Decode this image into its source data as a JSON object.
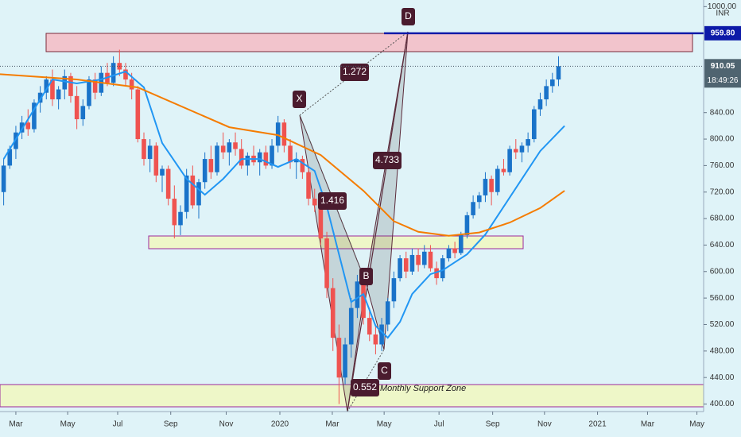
{
  "chart_data": {
    "type": "candlestick",
    "currency": "INR",
    "up_color": "#1a73c9",
    "down_color": "#ef5350",
    "xlim": [
      -2.6,
      112.8
    ],
    "ylim": [
      388,
      1010
    ],
    "grid": false,
    "xticks": [
      {
        "value": 0,
        "label": "Mar"
      },
      {
        "value": 8.5,
        "label": "May"
      },
      {
        "value": 16.7,
        "label": "Jul"
      },
      {
        "value": 25.4,
        "label": "Sep"
      },
      {
        "value": 34.5,
        "label": "Nov"
      },
      {
        "value": 43.3,
        "label": "2020"
      },
      {
        "value": 51.9,
        "label": "Mar"
      },
      {
        "value": 60.4,
        "label": "May"
      },
      {
        "value": 69.4,
        "label": "Jul"
      },
      {
        "value": 78.2,
        "label": "Sep"
      },
      {
        "value": 86.7,
        "label": "Nov"
      },
      {
        "value": 95.4,
        "label": "2021"
      },
      {
        "value": 103.6,
        "label": "Mar"
      },
      {
        "value": 111.7,
        "label": "May"
      }
    ],
    "yticks": [
      {
        "value": 400,
        "label": "400.00"
      },
      {
        "value": 440,
        "label": "440.00"
      },
      {
        "value": 480,
        "label": "480.00"
      },
      {
        "value": 520,
        "label": "520.00"
      },
      {
        "value": 560,
        "label": "560.00"
      },
      {
        "value": 600,
        "label": "600.00"
      },
      {
        "value": 640,
        "label": "640.00"
      },
      {
        "value": 680,
        "label": "680.00"
      },
      {
        "value": 720,
        "label": "720.00"
      },
      {
        "value": 760,
        "label": "760.00"
      },
      {
        "value": 800,
        "label": "800.00"
      },
      {
        "value": 840,
        "label": "840.00"
      },
      {
        "value": 1000,
        "label": "1000.00"
      }
    ],
    "x": [
      -2,
      -1,
      0,
      1,
      2,
      3,
      4,
      5,
      6,
      7,
      8,
      9,
      10,
      11,
      12,
      13,
      14,
      15,
      16,
      17,
      18,
      19,
      20,
      21,
      22,
      23,
      24,
      25,
      26,
      27,
      28,
      29,
      30,
      31,
      32,
      33,
      34,
      35,
      36,
      37,
      38,
      39,
      40,
      41,
      42,
      43,
      44,
      45,
      46,
      47,
      48,
      49,
      50,
      51,
      52,
      53,
      54,
      55,
      56,
      57,
      58,
      59,
      60,
      61,
      62,
      63,
      64,
      65,
      66,
      67,
      68,
      69,
      70,
      71,
      72,
      73,
      74,
      75,
      76,
      77,
      78,
      79,
      80,
      81,
      82,
      83,
      84,
      85,
      86,
      87,
      88,
      89
    ],
    "open": [
      720,
      760,
      785,
      810,
      825,
      815,
      855,
      870,
      890,
      860,
      875,
      895,
      865,
      830,
      850,
      890,
      870,
      900,
      885,
      915,
      905,
      890,
      875,
      800,
      770,
      790,
      745,
      755,
      710,
      670,
      690,
      745,
      700,
      735,
      770,
      750,
      790,
      780,
      795,
      785,
      760,
      775,
      765,
      780,
      760,
      790,
      825,
      790,
      765,
      770,
      750,
      710,
      700,
      650,
      575,
      500,
      440,
      490,
      545,
      585,
      530,
      505,
      490,
      520,
      555,
      590,
      620,
      600,
      625,
      610,
      630,
      605,
      590,
      620,
      635,
      628,
      655,
      685,
      705,
      715,
      740,
      720,
      755,
      750,
      785,
      780,
      790,
      800,
      845,
      860,
      880,
      890
    ],
    "high": [
      770,
      790,
      820,
      835,
      845,
      860,
      880,
      895,
      905,
      880,
      905,
      900,
      880,
      860,
      895,
      900,
      910,
      915,
      925,
      935,
      915,
      900,
      880,
      810,
      800,
      795,
      760,
      760,
      730,
      700,
      755,
      760,
      740,
      780,
      790,
      795,
      810,
      800,
      810,
      800,
      780,
      790,
      785,
      790,
      800,
      835,
      830,
      800,
      780,
      775,
      760,
      725,
      705,
      660,
      590,
      520,
      500,
      560,
      595,
      590,
      545,
      520,
      530,
      560,
      600,
      625,
      630,
      635,
      635,
      640,
      640,
      615,
      625,
      640,
      645,
      660,
      690,
      715,
      720,
      750,
      745,
      760,
      770,
      790,
      800,
      795,
      810,
      850,
      870,
      890,
      900,
      925
    ],
    "low": [
      700,
      755,
      770,
      800,
      805,
      810,
      840,
      860,
      850,
      845,
      860,
      855,
      815,
      820,
      845,
      860,
      865,
      880,
      880,
      895,
      880,
      860,
      795,
      760,
      750,
      735,
      720,
      700,
      650,
      655,
      680,
      695,
      680,
      725,
      740,
      745,
      770,
      760,
      775,
      755,
      745,
      760,
      745,
      755,
      755,
      780,
      780,
      755,
      740,
      740,
      700,
      690,
      640,
      560,
      480,
      400,
      430,
      470,
      530,
      520,
      495,
      475,
      480,
      510,
      545,
      585,
      590,
      595,
      600,
      605,
      600,
      580,
      585,
      615,
      620,
      625,
      650,
      680,
      695,
      705,
      700,
      715,
      745,
      745,
      770,
      765,
      780,
      795,
      835,
      850,
      870,
      880
    ],
    "close": [
      760,
      785,
      810,
      825,
      815,
      855,
      870,
      890,
      860,
      875,
      895,
      865,
      830,
      850,
      890,
      870,
      900,
      885,
      915,
      905,
      890,
      875,
      800,
      770,
      790,
      745,
      755,
      710,
      670,
      690,
      745,
      700,
      735,
      770,
      750,
      790,
      780,
      795,
      785,
      760,
      775,
      765,
      780,
      760,
      790,
      825,
      790,
      765,
      770,
      750,
      710,
      700,
      650,
      575,
      500,
      440,
      490,
      545,
      585,
      530,
      505,
      490,
      520,
      555,
      590,
      620,
      600,
      625,
      610,
      630,
      605,
      590,
      620,
      635,
      628,
      655,
      685,
      705,
      715,
      740,
      720,
      755,
      750,
      785,
      780,
      790,
      800,
      845,
      860,
      880,
      890,
      910.05
    ],
    "lines": [
      {
        "color": "#2196f3",
        "x": [
          -2,
          2,
          6,
          10,
          14,
          18,
          21,
          24,
          28,
          31,
          34,
          37,
          40,
          43,
          46,
          49,
          51,
          53,
          55,
          57,
          59,
          61,
          63,
          65,
          68,
          70,
          72,
          74,
          77,
          80,
          83,
          86,
          90
        ],
        "values": [
          770,
          830,
          890,
          884,
          890,
          902,
          878,
          794,
          740,
          716,
          740,
          770,
          770,
          758,
          770,
          752,
          698,
          626,
          554,
          566,
          518,
          500,
          524,
          566,
          596,
          602,
          614,
          626,
          656,
          698,
          740,
          782,
          820
        ]
      },
      {
        "color": "#f57c00",
        "x": [
          -2.6,
          10,
          20,
          35,
          43,
          50,
          57,
          62,
          66,
          71,
          76,
          81,
          86,
          90
        ],
        "values": [
          898,
          890,
          878,
          818,
          806,
          776,
          722,
          676,
          660,
          654,
          659,
          674,
          696,
          722
        ]
      }
    ],
    "resistance": {
      "value": 959.8,
      "label": "959.80"
    },
    "last_price": {
      "value": 910.05,
      "label": "910.05"
    },
    "countdown": "18:49:26",
    "annotations": {
      "D": "D",
      "X": "X",
      "B": "B",
      "C": "C",
      "r1": "1.272",
      "r2": "4.733",
      "r3": "1.416",
      "r4": "0.552",
      "zone": "Monthly Support Zone"
    }
  }
}
